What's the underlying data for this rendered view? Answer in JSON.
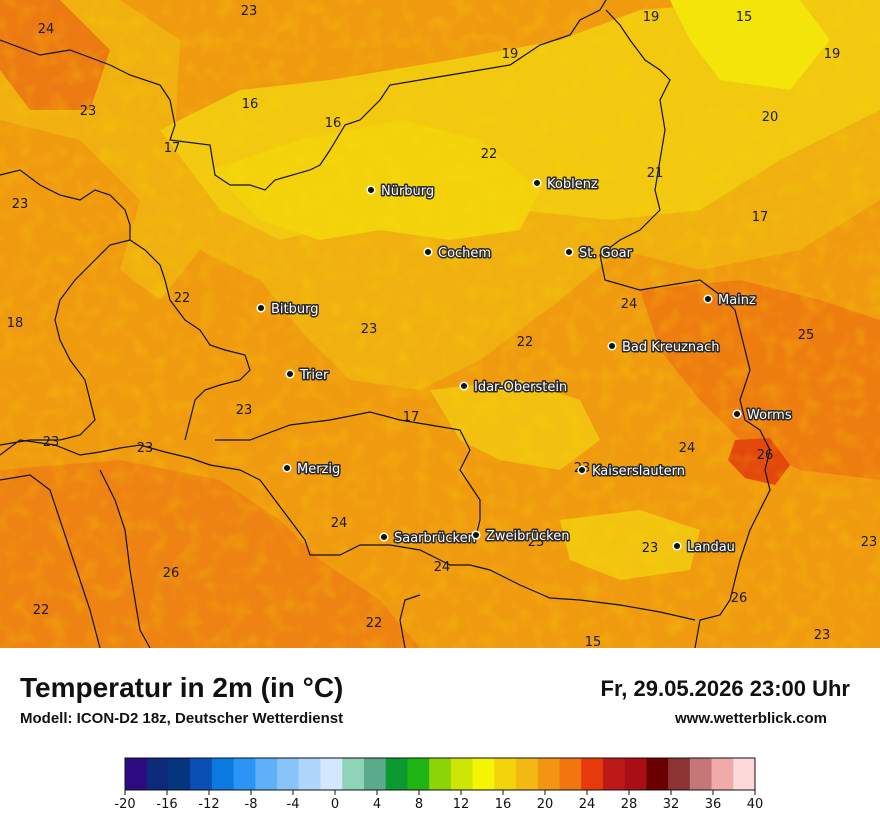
{
  "map": {
    "cities": [
      {
        "name": "Nürburg",
        "id": "nuerburg"
      },
      {
        "name": "Koblenz",
        "id": "koblenz"
      },
      {
        "name": "Cochem",
        "id": "cochem"
      },
      {
        "name": "St. Goar",
        "id": "st-goar"
      },
      {
        "name": "Mainz",
        "id": "mainz"
      },
      {
        "name": "Bitburg",
        "id": "bitburg"
      },
      {
        "name": "Bad Kreuznach",
        "id": "bad-kreuznach"
      },
      {
        "name": "Trier",
        "id": "trier"
      },
      {
        "name": "Idar-Oberstein",
        "id": "idar-oberstein"
      },
      {
        "name": "Worms",
        "id": "worms"
      },
      {
        "name": "Merzig",
        "id": "merzig"
      },
      {
        "name": "Kaiserslautern",
        "id": "kaiserslautern"
      },
      {
        "name": "Saarbrücken",
        "id": "saarbruecken"
      },
      {
        "name": "Zweibrücken",
        "id": "zweibruecken"
      },
      {
        "name": "Landau",
        "id": "landau"
      }
    ],
    "temperatures": [
      23,
      24,
      19,
      15,
      19,
      19,
      23,
      16,
      16,
      20,
      17,
      22,
      21,
      23,
      17,
      22,
      18,
      24,
      23,
      25,
      22,
      23,
      17,
      23,
      23,
      24,
      26,
      23,
      24,
      23,
      23,
      26,
      24,
      23,
      22,
      26,
      22,
      15,
      23
    ]
  },
  "header": {
    "title": "Temperatur in 2m (in °C)",
    "model": "Modell: ICON-D2 18z, Deutscher Wetterdienst",
    "datetime": "Fr, 29.05.2026 23:00 Uhr",
    "site": "www.wetterblick.com"
  },
  "scale": {
    "labels": [
      "-20",
      "-16",
      "-12",
      "-8",
      "-4",
      "0",
      "4",
      "8",
      "12",
      "16",
      "20",
      "24",
      "28",
      "32",
      "36",
      "40"
    ],
    "colors": [
      "#2e0a82",
      "#0d2a7a",
      "#05357f",
      "#0a4fb3",
      "#0a7ae0",
      "#2b94f4",
      "#5fb0f8",
      "#88c4fa",
      "#b0d6fc",
      "#d4e8fd",
      "#8fd4b8",
      "#5aab8c",
      "#0c9a30",
      "#1fb514",
      "#8cd408",
      "#cde606",
      "#f3f504",
      "#f3d40c",
      "#f3b812",
      "#f29612",
      "#f2760f",
      "#e73a0a",
      "#be1919",
      "#a80e14",
      "#6b0000",
      "#8c3434",
      "#c57676",
      "#f1aaaa",
      "#fdd9d9"
    ]
  }
}
